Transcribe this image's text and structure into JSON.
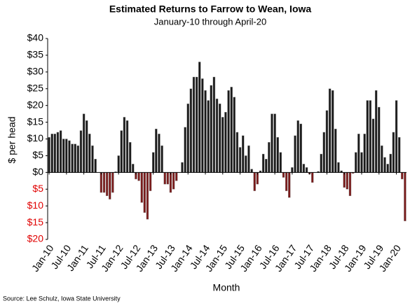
{
  "chart_data": {
    "type": "bar",
    "title": "Estimated Returns to Farrow to Wean, Iowa",
    "subtitle": "January-10 through April-20",
    "y_label": "$ per head",
    "x_label": "Month",
    "source": "Source: Lee Schulz, Iowa State University",
    "categories": [
      "Jan-10",
      null,
      null,
      null,
      null,
      null,
      "Jul-10",
      null,
      null,
      null,
      null,
      null,
      "Jan-11",
      null,
      null,
      null,
      null,
      null,
      "Jul-11",
      null,
      null,
      null,
      null,
      null,
      "Jan-12",
      null,
      null,
      null,
      null,
      null,
      "Jul-12",
      null,
      null,
      null,
      null,
      null,
      "Jan-13",
      null,
      null,
      null,
      null,
      null,
      "Jul-13",
      null,
      null,
      null,
      null,
      null,
      "Jan-14",
      null,
      null,
      null,
      null,
      null,
      "Jul-14",
      null,
      null,
      null,
      null,
      null,
      "Jan-15",
      null,
      null,
      null,
      null,
      null,
      "Jul-15",
      null,
      null,
      null,
      null,
      null,
      "Jan-16",
      null,
      null,
      null,
      null,
      null,
      "Jul-16",
      null,
      null,
      null,
      null,
      null,
      "Jan-17",
      null,
      null,
      null,
      null,
      null,
      "Jul-17",
      null,
      null,
      null,
      null,
      null,
      "Jan-18",
      null,
      null,
      null,
      null,
      null,
      "Jul-18",
      null,
      null,
      null,
      null,
      null,
      "Jan-19",
      null,
      null,
      null,
      null,
      null,
      "Jul-19",
      null,
      null,
      null,
      null,
      null,
      "Jan-20",
      null,
      null,
      null
    ],
    "values": [
      10.5,
      11.5,
      11.5,
      12,
      12.5,
      10,
      10,
      9.5,
      8.5,
      8.5,
      8,
      12.5,
      17.5,
      15.5,
      11.5,
      8,
      4,
      0,
      -6,
      -6,
      -7,
      -8,
      -6,
      0.2,
      5,
      12.5,
      16.5,
      15.5,
      9,
      2.5,
      -2,
      -2.5,
      -9,
      -12,
      -14,
      -5.5,
      6,
      13,
      11.5,
      8,
      -3.5,
      -3.5,
      -6,
      -5,
      -2.5,
      0,
      3,
      13.5,
      20.5,
      25,
      28.5,
      28.5,
      33,
      28,
      24.5,
      21.5,
      26,
      28.5,
      22,
      20.5,
      16.5,
      18,
      24.5,
      25.5,
      22.5,
      12,
      7.5,
      11,
      5,
      8,
      1,
      -5.5,
      -3.5,
      0.5,
      5.5,
      4,
      9,
      17.5,
      17.5,
      10.5,
      6,
      -1.5,
      -5.5,
      -7.5,
      1.5,
      11,
      15.5,
      14.5,
      2.5,
      1.5,
      -0.5,
      -3,
      0,
      0.3,
      5.5,
      12,
      18.5,
      25,
      24.5,
      13,
      3,
      0.5,
      -4.5,
      -5,
      -7,
      -0.3,
      6,
      11.5,
      6,
      11.5,
      21.5,
      21.5,
      16,
      24.5,
      19.5,
      8,
      4.5,
      2.5,
      5.5,
      12,
      21.5,
      10.5,
      -2,
      -14.5
    ],
    "color": "#1a1a1a",
    "negative_color": "#7a1a1a",
    "negative_tick_color": "#e00000",
    "ylim": [
      -20,
      40
    ],
    "yticks": [
      {
        "value": 40,
        "label": "$40"
      },
      {
        "value": 35,
        "label": "$35"
      },
      {
        "value": 30,
        "label": "$30"
      },
      {
        "value": 25,
        "label": "$25"
      },
      {
        "value": 20,
        "label": "$20"
      },
      {
        "value": 15,
        "label": "$15"
      },
      {
        "value": 10,
        "label": "$10"
      },
      {
        "value": 5,
        "label": "$5"
      },
      {
        "value": 0,
        "label": "$0"
      },
      {
        "value": -5,
        "label": "$5"
      },
      {
        "value": -10,
        "label": "$10"
      },
      {
        "value": -15,
        "label": "$15"
      },
      {
        "value": -20,
        "label": "$20"
      }
    ],
    "grid": false
  }
}
